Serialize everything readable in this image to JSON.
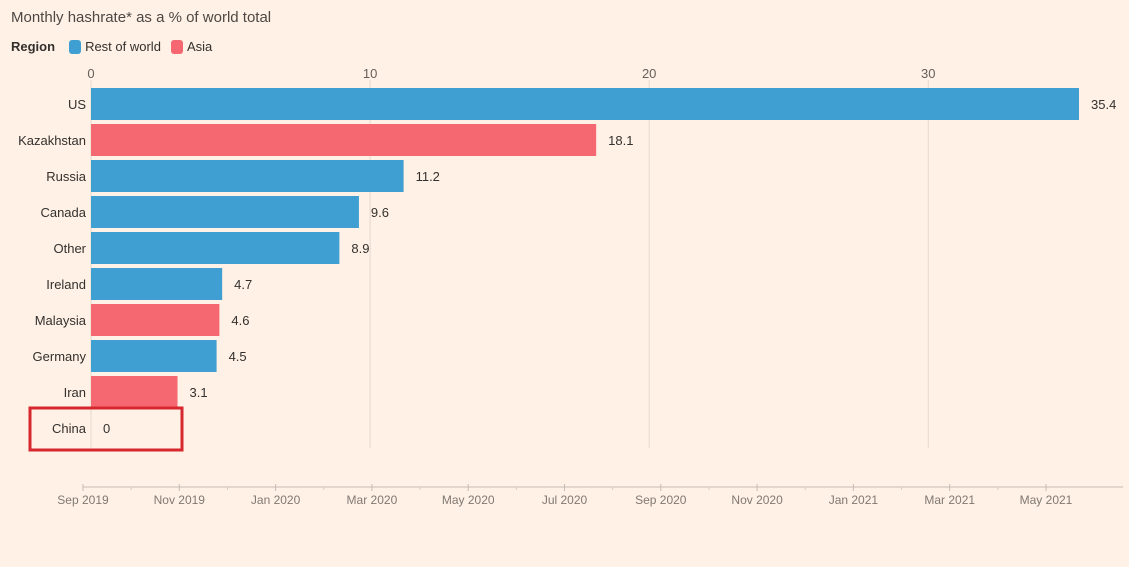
{
  "chart_data": {
    "type": "bar",
    "orientation": "horizontal",
    "title": "Monthly hashrate* as a % of world total",
    "legend_title": "Region",
    "legend": [
      {
        "name": "Rest of world",
        "color": "#3f9fd3"
      },
      {
        "name": "Asia",
        "color": "#f56872"
      }
    ],
    "xlim": [
      0,
      35.4
    ],
    "xticks": [
      0,
      10,
      20,
      30
    ],
    "grid": true,
    "categories": [
      "US",
      "Kazakhstan",
      "Russia",
      "Canada",
      "Other",
      "Ireland",
      "Malaysia",
      "Germany",
      "Iran",
      "China"
    ],
    "values": [
      35.4,
      18.1,
      11.2,
      9.6,
      8.9,
      4.7,
      4.6,
      4.5,
      3.1,
      0
    ],
    "value_labels": [
      "35.4",
      "18.1",
      "11.2",
      "9.6",
      "8.9",
      "4.7",
      "4.6",
      "4.5",
      "3.1",
      "0"
    ],
    "regions": [
      "Rest of world",
      "Asia",
      "Rest of world",
      "Rest of world",
      "Rest of world",
      "Rest of world",
      "Asia",
      "Rest of world",
      "Asia",
      "Asia"
    ],
    "highlighted_category": "China",
    "highlight_color": "#d7272e",
    "timeline": [
      "Sep 2019",
      "Nov 2019",
      "Jan 2020",
      "Mar 2020",
      "May 2020",
      "Jul 2020",
      "Sep 2020",
      "Nov 2020",
      "Jan 2021",
      "Mar 2021",
      "May 2021"
    ]
  }
}
